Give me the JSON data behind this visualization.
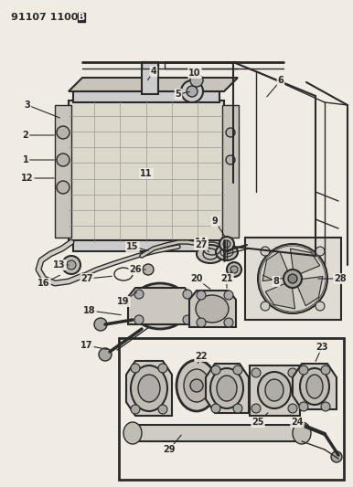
{
  "title": "91107 1100B",
  "bg_color": "#f0ece4",
  "line_color": "#2a2a2a",
  "fig_width": 3.86,
  "fig_height": 5.33,
  "dpi": 100
}
